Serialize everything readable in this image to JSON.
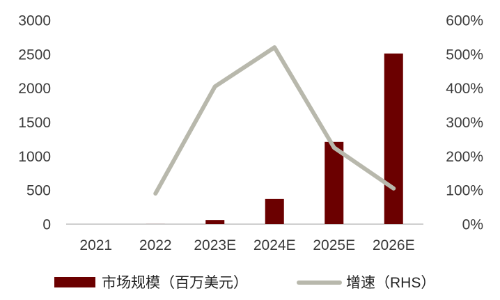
{
  "chart_data": {
    "type": "bar+line",
    "categories": [
      "2021",
      "2022",
      "2023E",
      "2024E",
      "2025E",
      "2026E"
    ],
    "series": [
      {
        "name": "市场规模（百万美元）",
        "type": "bar",
        "axis": "left",
        "color": "#6b0000",
        "values": [
          0,
          1,
          60,
          370,
          1210,
          2510
        ]
      },
      {
        "name": "增速（RHS）",
        "type": "line",
        "axis": "right",
        "color": "#b8b8ac",
        "values": [
          null,
          90,
          405,
          520,
          225,
          105
        ]
      }
    ],
    "y_left": {
      "ticks": [
        "3000",
        "2500",
        "2000",
        "1500",
        "1000",
        "500",
        "0"
      ],
      "ylim": [
        0,
        3000
      ]
    },
    "y_right": {
      "ticks": [
        "600%",
        "500%",
        "400%",
        "300%",
        "200%",
        "100%",
        "0%"
      ],
      "ylim": [
        0,
        600
      ]
    },
    "legend_position": "bottom",
    "grid": false
  }
}
